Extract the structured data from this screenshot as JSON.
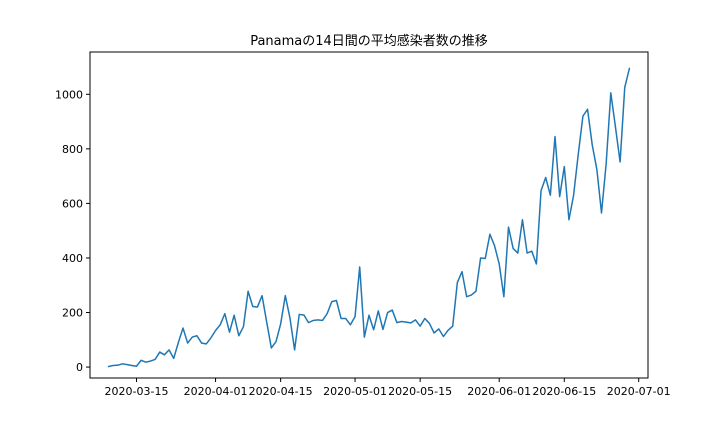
{
  "chart_data": {
    "type": "line",
    "title": "Panamaの14日間の平均感染者数の推移",
    "xlabel": "",
    "ylabel": "",
    "xlim": [
      "2020-03-05",
      "2020-07-03"
    ],
    "ylim": [
      -40,
      1155
    ],
    "x_ticks": [
      "2020-03-15",
      "2020-04-01",
      "2020-04-15",
      "2020-05-01",
      "2020-05-15",
      "2020-06-01",
      "2020-06-15",
      "2020-07-01"
    ],
    "y_ticks": [
      0,
      200,
      400,
      600,
      800,
      1000
    ],
    "grid": false,
    "series": [
      {
        "color": "#1f77b4",
        "start_date": "2020-03-09",
        "values": [
          2,
          6,
          7,
          12,
          9,
          6,
          3,
          25,
          18,
          22,
          28,
          55,
          45,
          63,
          32,
          90,
          143,
          88,
          110,
          115,
          88,
          85,
          107,
          134,
          155,
          196,
          128,
          190,
          115,
          148,
          278,
          222,
          220,
          262,
          165,
          70,
          93,
          158,
          262,
          180,
          63,
          193,
          191,
          163,
          171,
          173,
          171,
          196,
          240,
          244,
          178,
          178,
          155,
          185,
          367,
          110,
          190,
          137,
          206,
          138,
          200,
          209,
          163,
          167,
          165,
          162,
          173,
          150,
          178,
          160,
          125,
          140,
          112,
          135,
          150,
          310,
          350,
          258,
          264,
          278,
          400,
          398,
          487,
          445,
          378,
          258,
          513,
          435,
          418,
          540,
          418,
          425,
          378,
          647,
          695,
          630,
          845,
          625,
          735,
          540,
          630,
          780,
          920,
          945,
          815,
          725,
          565,
          745,
          1005,
          880,
          752,
          1025,
          1095
        ]
      }
    ]
  }
}
